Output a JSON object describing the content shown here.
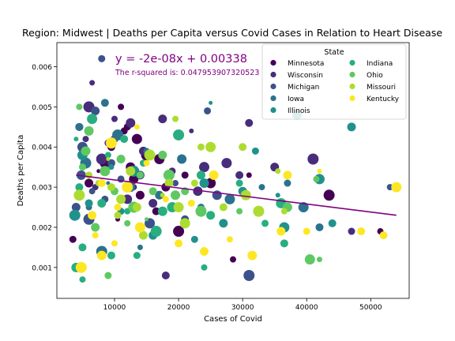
{
  "chart_data": {
    "type": "scatter",
    "title": "Region:  Midwest | Deaths per Capita versus Covid Cases in Relation to Heart Disease",
    "xlabel": "Cases of Covid",
    "ylabel": "Deaths per Capita",
    "xlim": [
      1000,
      56000
    ],
    "ylim": [
      0.00023,
      0.0066
    ],
    "xticks": [
      10000,
      20000,
      30000,
      40000,
      50000
    ],
    "xtick_labels": [
      "10000",
      "20000",
      "30000",
      "40000",
      "50000"
    ],
    "yticks": [
      0.001,
      0.002,
      0.003,
      0.004,
      0.005,
      0.006
    ],
    "ytick_labels": [
      "0.001",
      "0.002",
      "0.003",
      "0.004",
      "0.005",
      "0.006"
    ],
    "grid": false,
    "legend": {
      "title": "State",
      "placement": "top-right",
      "columns": 2,
      "entries": [
        {
          "name": "Minnesota",
          "color": "#440154"
        },
        {
          "name": "Wisconsin",
          "color": "#472d7b"
        },
        {
          "name": "Michigan",
          "color": "#3b528b"
        },
        {
          "name": "Iowa",
          "color": "#2c728e"
        },
        {
          "name": "Illinois",
          "color": "#21918c"
        },
        {
          "name": "Indiana",
          "color": "#28ae80"
        },
        {
          "name": "Ohio",
          "color": "#5ec962"
        },
        {
          "name": "Missouri",
          "color": "#addc30"
        },
        {
          "name": "Kentucky",
          "color": "#fde725"
        }
      ]
    },
    "regression": {
      "equation": "y = -2e-08x + 0.00338",
      "r_squared_text": "The r-squared is: 0.047953907320523",
      "slope": -2e-08,
      "intercept": 0.00338,
      "x_range": [
        4000,
        54000
      ],
      "color": "#800080"
    },
    "series": [
      {
        "name": "Minnesota",
        "color": "#440154",
        "points": [
          [
            11000,
            0.005
          ],
          [
            12000,
            0.0045
          ],
          [
            13500,
            0.0042
          ],
          [
            9500,
            0.004
          ],
          [
            15000,
            0.0038
          ],
          [
            7500,
            0.0034
          ],
          [
            13000,
            0.0032
          ],
          [
            18000,
            0.003
          ],
          [
            21000,
            0.0033
          ],
          [
            25000,
            0.0031
          ],
          [
            31000,
            0.0033
          ],
          [
            43500,
            0.0028
          ],
          [
            51500,
            0.0019
          ],
          [
            12500,
            0.0035
          ],
          [
            14000,
            0.0028
          ],
          [
            10500,
            0.0022
          ],
          [
            8500,
            0.0036
          ],
          [
            16500,
            0.0024
          ],
          [
            20000,
            0.0019
          ],
          [
            28500,
            0.0012
          ],
          [
            3500,
            0.0017
          ],
          [
            6000,
            0.0031
          ],
          [
            11500,
            0.0044
          ],
          [
            17000,
            0.0037
          ]
        ]
      },
      {
        "name": "Wisconsin",
        "color": "#472d7b",
        "points": [
          [
            6500,
            0.0056
          ],
          [
            6000,
            0.005
          ],
          [
            10000,
            0.0047
          ],
          [
            12500,
            0.0046
          ],
          [
            17500,
            0.0047
          ],
          [
            22000,
            0.0044
          ],
          [
            27500,
            0.0036
          ],
          [
            31000,
            0.0046
          ],
          [
            41000,
            0.0037
          ],
          [
            5500,
            0.0042
          ],
          [
            9000,
            0.0041
          ],
          [
            14500,
            0.0039
          ],
          [
            19000,
            0.0034
          ],
          [
            24000,
            0.0035
          ],
          [
            29500,
            0.0033
          ],
          [
            35000,
            0.0035
          ],
          [
            7000,
            0.003
          ],
          [
            12000,
            0.0027
          ],
          [
            16000,
            0.0026
          ],
          [
            47000,
            0.0019
          ],
          [
            18000,
            0.0008
          ],
          [
            4500,
            0.0045
          ],
          [
            8000,
            0.0037
          ],
          [
            13000,
            0.003
          ],
          [
            23000,
            0.0029
          ]
        ]
      },
      {
        "name": "Michigan",
        "color": "#3b528b",
        "points": [
          [
            8000,
            0.0062
          ],
          [
            7000,
            0.0049
          ],
          [
            24500,
            0.0049
          ],
          [
            5000,
            0.004
          ],
          [
            9500,
            0.0036
          ],
          [
            14000,
            0.0033
          ],
          [
            19500,
            0.0031
          ],
          [
            26000,
            0.0028
          ],
          [
            4000,
            0.0025
          ],
          [
            8500,
            0.0027
          ],
          [
            13500,
            0.0025
          ],
          [
            21000,
            0.0022
          ],
          [
            31000,
            0.0008
          ],
          [
            53000,
            0.003
          ],
          [
            4800,
            0.0033
          ],
          [
            6500,
            0.0029
          ],
          [
            11000,
            0.0032
          ],
          [
            15500,
            0.0021
          ],
          [
            10000,
            0.0042
          ],
          [
            6000,
            0.0022
          ]
        ]
      },
      {
        "name": "Iowa",
        "color": "#2c728e",
        "points": [
          [
            8500,
            0.0051
          ],
          [
            4500,
            0.0045
          ],
          [
            10500,
            0.0043
          ],
          [
            15000,
            0.0039
          ],
          [
            20500,
            0.0037
          ],
          [
            33000,
            0.003
          ],
          [
            37000,
            0.0031
          ],
          [
            39500,
            0.0025
          ],
          [
            42000,
            0.002
          ],
          [
            5500,
            0.0036
          ],
          [
            9000,
            0.0031
          ],
          [
            12500,
            0.003
          ],
          [
            17000,
            0.0028
          ],
          [
            23500,
            0.0025
          ],
          [
            28000,
            0.0027
          ],
          [
            14000,
            0.0015
          ],
          [
            8000,
            0.0014
          ],
          [
            6000,
            0.0025
          ]
        ]
      },
      {
        "name": "Illinois",
        "color": "#21918c",
        "points": [
          [
            25000,
            0.0051
          ],
          [
            38500,
            0.0048
          ],
          [
            47000,
            0.0045
          ],
          [
            32000,
            0.0039
          ],
          [
            5000,
            0.0038
          ],
          [
            9500,
            0.0035
          ],
          [
            13000,
            0.0034
          ],
          [
            18500,
            0.0032
          ],
          [
            24000,
            0.0031
          ],
          [
            30000,
            0.0029
          ],
          [
            35500,
            0.0028
          ],
          [
            42000,
            0.0032
          ],
          [
            44000,
            0.0021
          ],
          [
            3800,
            0.0023
          ],
          [
            7000,
            0.002
          ],
          [
            11000,
            0.0024
          ],
          [
            16000,
            0.0018
          ],
          [
            22500,
            0.0017
          ],
          [
            36500,
            0.002
          ],
          [
            6000,
            0.0026
          ],
          [
            27000,
            0.0021
          ]
        ]
      },
      {
        "name": "Indiana",
        "color": "#28ae80",
        "points": [
          [
            4000,
            0.0042
          ],
          [
            6500,
            0.0047
          ],
          [
            11500,
            0.0042
          ],
          [
            20000,
            0.0043
          ],
          [
            9000,
            0.0038
          ],
          [
            14500,
            0.0036
          ],
          [
            23500,
            0.0033
          ],
          [
            29500,
            0.0031
          ],
          [
            36000,
            0.0026
          ],
          [
            4500,
            0.003
          ],
          [
            8000,
            0.0026
          ],
          [
            12000,
            0.0024
          ],
          [
            17500,
            0.0024
          ],
          [
            25000,
            0.0023
          ],
          [
            33500,
            0.0021
          ],
          [
            5000,
            0.0015
          ],
          [
            9500,
            0.0013
          ],
          [
            16500,
            0.0019
          ],
          [
            24000,
            0.001
          ],
          [
            4000,
            0.001
          ],
          [
            5000,
            0.0007
          ],
          [
            13500,
            0.0013
          ],
          [
            19000,
            0.0025
          ],
          [
            36500,
            0.0016
          ]
        ]
      },
      {
        "name": "Ohio",
        "color": "#5ec962",
        "points": [
          [
            17500,
            0.0038
          ],
          [
            4500,
            0.005
          ],
          [
            5500,
            0.0039
          ],
          [
            11000,
            0.0037
          ],
          [
            14000,
            0.0033
          ],
          [
            16000,
            0.0029
          ],
          [
            21000,
            0.0029
          ],
          [
            23500,
            0.0024
          ],
          [
            29500,
            0.0024
          ],
          [
            37000,
            0.0025
          ],
          [
            41500,
            0.0032
          ],
          [
            5000,
            0.0035
          ],
          [
            8500,
            0.0034
          ],
          [
            10000,
            0.0029
          ],
          [
            13000,
            0.0025
          ],
          [
            15000,
            0.0022
          ],
          [
            19500,
            0.0028
          ],
          [
            7000,
            0.002
          ],
          [
            9000,
            0.0008
          ],
          [
            40500,
            0.0012
          ],
          [
            42000,
            0.0012
          ],
          [
            18500,
            0.0033
          ],
          [
            12000,
            0.0021
          ],
          [
            6000,
            0.0044
          ]
        ]
      },
      {
        "name": "Missouri",
        "color": "#addc30",
        "points": [
          [
            19500,
            0.0047
          ],
          [
            23500,
            0.004
          ],
          [
            25000,
            0.004
          ],
          [
            30000,
            0.004
          ],
          [
            15500,
            0.0038
          ],
          [
            9000,
            0.0037
          ],
          [
            12500,
            0.0034
          ],
          [
            18500,
            0.0031
          ],
          [
            22500,
            0.0031
          ],
          [
            30500,
            0.0028
          ],
          [
            35500,
            0.0034
          ],
          [
            4500,
            0.0028
          ],
          [
            7500,
            0.0031
          ],
          [
            11000,
            0.0027
          ],
          [
            13500,
            0.0025
          ],
          [
            17500,
            0.0028
          ],
          [
            20000,
            0.0025
          ],
          [
            27000,
            0.0025
          ],
          [
            32500,
            0.0024
          ],
          [
            36500,
            0.0024
          ],
          [
            10500,
            0.0023
          ],
          [
            14500,
            0.0018
          ],
          [
            6000,
            0.0033
          ],
          [
            21000,
            0.0021
          ],
          [
            9500,
            0.003
          ]
        ]
      },
      {
        "name": "Kentucky",
        "color": "#fde725",
        "points": [
          [
            13500,
            0.0045
          ],
          [
            9500,
            0.0041
          ],
          [
            15000,
            0.0036
          ],
          [
            25500,
            0.0033
          ],
          [
            37000,
            0.0033
          ],
          [
            42000,
            0.0034
          ],
          [
            54000,
            0.003
          ],
          [
            8000,
            0.0031
          ],
          [
            12000,
            0.003
          ],
          [
            18000,
            0.0027
          ],
          [
            22000,
            0.0026
          ],
          [
            6500,
            0.0023
          ],
          [
            10500,
            0.0025
          ],
          [
            14000,
            0.002
          ],
          [
            20000,
            0.0016
          ],
          [
            24000,
            0.0014
          ],
          [
            28000,
            0.0017
          ],
          [
            31500,
            0.0013
          ],
          [
            36000,
            0.0019
          ],
          [
            40000,
            0.0019
          ],
          [
            48500,
            0.0019
          ],
          [
            52000,
            0.0018
          ],
          [
            4800,
            0.001
          ],
          [
            10000,
            0.0016
          ],
          [
            8000,
            0.0013
          ],
          [
            7000,
            0.0018
          ]
        ]
      }
    ]
  }
}
